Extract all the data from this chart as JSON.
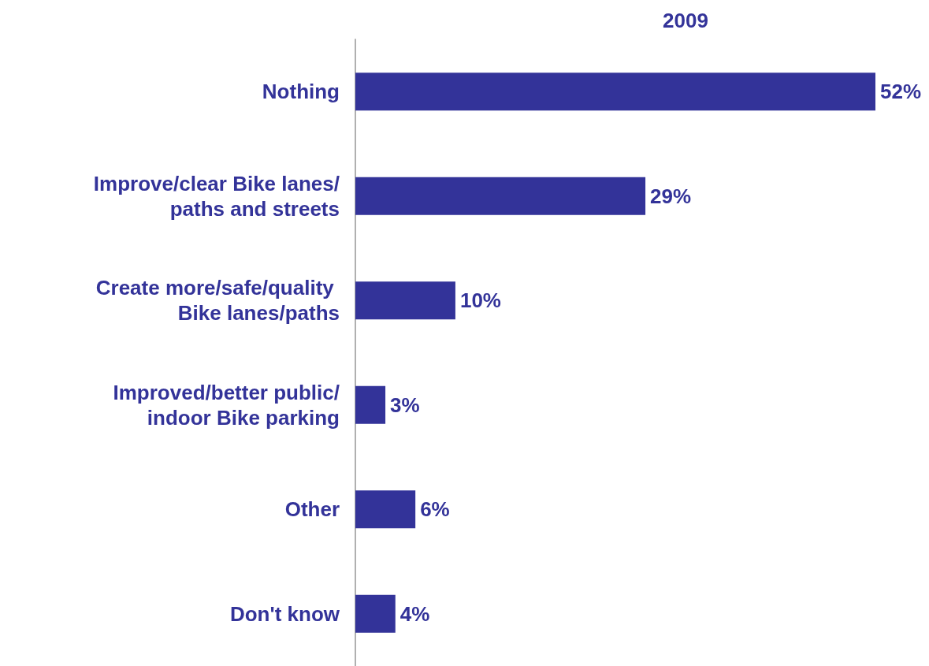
{
  "chart_data": {
    "type": "bar",
    "orientation": "horizontal",
    "title": "2009",
    "categories": [
      "Nothing",
      "Improve/clear Bike lanes/paths and streets",
      "Create more/safe/quality Bike lanes/paths",
      "Improved/better public/indoor Bike parking",
      "Other",
      "Don't know"
    ],
    "values": [
      52,
      29,
      10,
      3,
      6,
      4
    ],
    "value_labels": [
      "52%",
      "29%",
      "10%",
      "3%",
      "6%",
      "4%"
    ],
    "color": "#333399",
    "grid": false
  }
}
